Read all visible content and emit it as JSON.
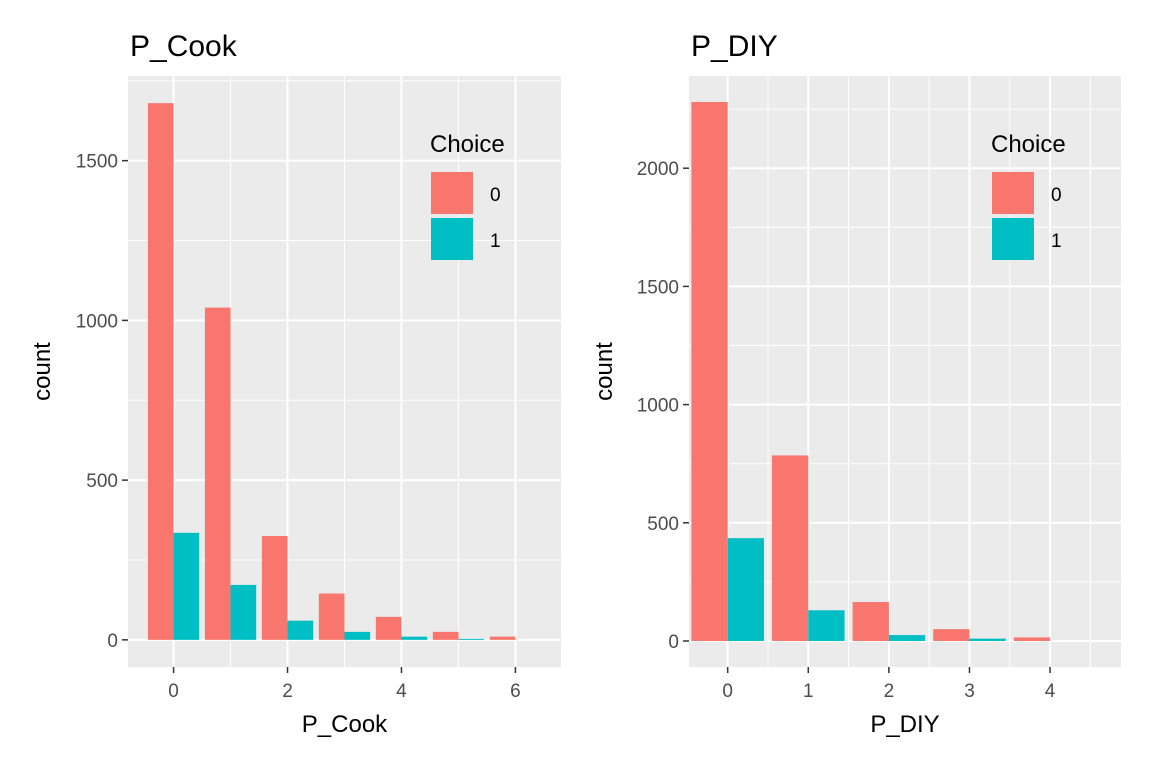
{
  "chart_data": [
    {
      "type": "bar",
      "title": "P_Cook",
      "xlabel": "P_Cook",
      "ylabel": "count",
      "x_ticks": [
        0,
        2,
        4,
        6
      ],
      "y_ticks": [
        0,
        500,
        1000,
        1500
      ],
      "xlim": [
        -0.8,
        6.8
      ],
      "ylim": [
        -85,
        1765
      ],
      "grid": true,
      "legend": {
        "title": "Choice",
        "position": "top-right",
        "entries": [
          "0",
          "1"
        ]
      },
      "categories": [
        0,
        1,
        2,
        3,
        4,
        5,
        6
      ],
      "series": [
        {
          "name": "0",
          "color": "#F8766D",
          "values": [
            1680,
            1040,
            325,
            145,
            72,
            25,
            10
          ]
        },
        {
          "name": "1",
          "color": "#00BFC4",
          "values": [
            335,
            172,
            60,
            25,
            10,
            3,
            0
          ]
        }
      ]
    },
    {
      "type": "bar",
      "title": "P_DIY",
      "xlabel": "P_DIY",
      "ylabel": "count",
      "x_ticks": [
        0,
        1,
        2,
        3,
        4
      ],
      "y_ticks": [
        0,
        500,
        1000,
        1500,
        2000
      ],
      "xlim": [
        -0.48,
        4.88
      ],
      "ylim": [
        -110,
        2390
      ],
      "grid": true,
      "legend": {
        "title": "Choice",
        "position": "top-right",
        "entries": [
          "0",
          "1"
        ]
      },
      "categories": [
        0,
        1,
        2,
        3,
        4
      ],
      "series": [
        {
          "name": "0",
          "color": "#F8766D",
          "values": [
            2280,
            785,
            165,
            50,
            15
          ]
        },
        {
          "name": "1",
          "color": "#00BFC4",
          "values": [
            435,
            130,
            25,
            10,
            0
          ]
        }
      ]
    }
  ]
}
